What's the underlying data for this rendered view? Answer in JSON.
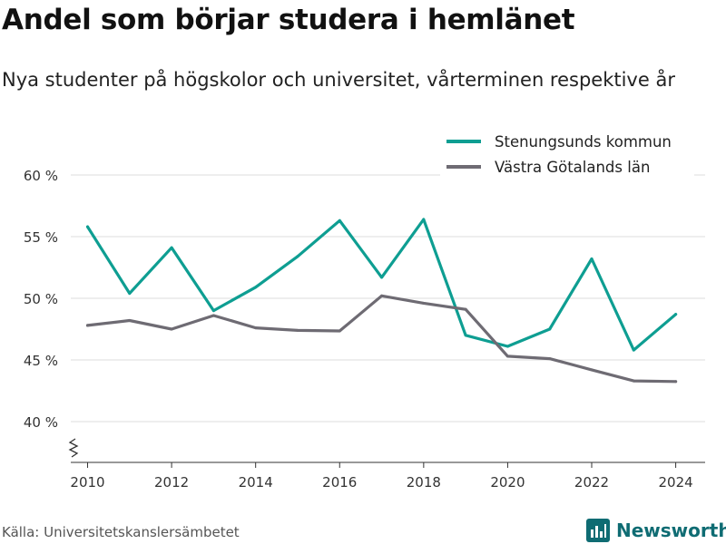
{
  "title": "Andel som börjar studera i hemlänet",
  "subtitle": "Nya studenter på högskolor och universitet, vårterminen respektive år",
  "source": "Källa: Universitetskanslersämbetet",
  "brand": {
    "name": "Newsworthy",
    "icon": "newsworthy-logo-icon",
    "color": "#0f6c73"
  },
  "chart_data": {
    "type": "line",
    "x": [
      2010,
      2011,
      2012,
      2013,
      2014,
      2015,
      2016,
      2017,
      2018,
      2019,
      2020,
      2021,
      2022,
      2023,
      2024
    ],
    "x_ticks": [
      2010,
      2012,
      2014,
      2016,
      2018,
      2020,
      2022,
      2024
    ],
    "x_tick_labels": [
      "2010",
      "2012",
      "2014",
      "2016",
      "2018",
      "2020",
      "2022",
      "2024"
    ],
    "xlim": [
      2009.6,
      2024.7
    ],
    "y_ticks": [
      40,
      45,
      50,
      55,
      60
    ],
    "y_tick_labels": [
      "40 %",
      "45 %",
      "50 %",
      "55 %",
      "60 %"
    ],
    "ylim": [
      40,
      60
    ],
    "axis_break": true,
    "grid": "horizontal",
    "legend_position": "top-right",
    "series": [
      {
        "name": "Stenungsunds kommun",
        "color": "#0e9e92",
        "values": [
          55.8,
          50.4,
          54.1,
          49.0,
          50.9,
          53.4,
          56.3,
          51.7,
          56.4,
          47.0,
          46.1,
          47.5,
          53.2,
          45.8,
          48.7
        ]
      },
      {
        "name": "Västra Götalands län",
        "color": "#6e6b73",
        "values": [
          47.8,
          48.2,
          47.5,
          48.6,
          47.6,
          47.4,
          47.35,
          50.2,
          49.6,
          49.1,
          45.3,
          45.1,
          44.2,
          43.3,
          43.25
        ]
      }
    ]
  }
}
